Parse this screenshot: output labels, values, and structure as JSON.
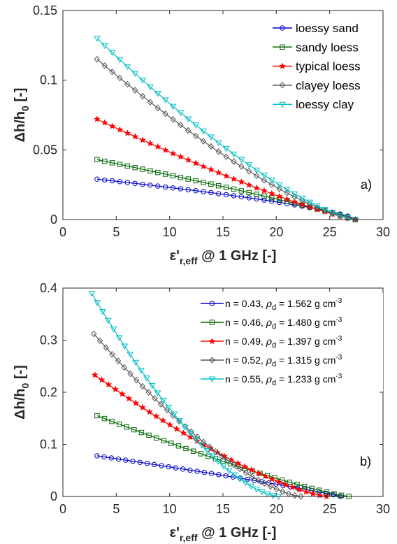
{
  "chart_data": [
    {
      "type": "line",
      "panel_label": "a)",
      "xlabel": {
        "main": "ε'",
        "sub": "r,eff",
        "rest": " @ 1 GHz [-]"
      },
      "ylabel": {
        "main": "Δh/h",
        "sub": "0",
        "rest": " [-]"
      },
      "xlim": [
        0,
        30
      ],
      "ylim": [
        0,
        0.15
      ],
      "xticks": [
        0,
        5,
        10,
        15,
        20,
        25,
        30
      ],
      "yticks": [
        0,
        0.05,
        0.1,
        0.15
      ],
      "ytick_labels": [
        "0",
        "0.05",
        "0.1",
        "0.15"
      ],
      "grid": false,
      "legend_placement": "top-right",
      "series": [
        {
          "name": "loessy sand",
          "color": "#0000cc",
          "marker": "circle",
          "x0": 3.2,
          "x1": 27.4,
          "y0": 0.029,
          "k": 0.7
        },
        {
          "name": "sandy loess",
          "color": "#006600",
          "marker": "square",
          "x0": 3.2,
          "x1": 27.4,
          "y0": 0.043,
          "k": 0.9
        },
        {
          "name": "typical loess",
          "color": "#ff0000",
          "marker": "star",
          "x0": 3.2,
          "x1": 27.4,
          "y0": 0.072,
          "k": 1.2
        },
        {
          "name": "clayey loess",
          "color": "#555555",
          "marker": "diamond",
          "x0": 3.2,
          "x1": 27.4,
          "y0": 0.115,
          "k": 1.35
        },
        {
          "name": "loessy clay",
          "color": "#00bfc4",
          "marker": "triangle-down",
          "x0": 3.2,
          "x1": 27.4,
          "y0": 0.13,
          "k": 1.35
        }
      ]
    },
    {
      "type": "line",
      "panel_label": "b)",
      "xlabel": {
        "main": "ε'",
        "sub": "r,eff",
        "rest": " @ 1 GHz [-]"
      },
      "ylabel": {
        "main": "Δh/h",
        "sub": "0",
        "rest": " [-]"
      },
      "xlim": [
        0,
        30
      ],
      "ylim": [
        0,
        0.4
      ],
      "xticks": [
        0,
        5,
        10,
        15,
        20,
        25,
        30
      ],
      "yticks": [
        0,
        0.1,
        0.2,
        0.3,
        0.4
      ],
      "ytick_labels": [
        "0",
        "0.1",
        "0.2",
        "0.3",
        "0.4"
      ],
      "grid": false,
      "legend_placement": "top-right",
      "series": [
        {
          "name": "n = 0.43, ρd = 1.562 g cm-3",
          "n_label": "n = 0.43, ",
          "rho": "ρ",
          "rho_sub": "d",
          "rho_val": " = 1.562 g cm",
          "exp": "-3",
          "color": "#0000cc",
          "marker": "circle",
          "x0": 3.2,
          "x1": 26.0,
          "y0": 0.078,
          "k": 0.9
        },
        {
          "name": "n = 0.46, ρd = 1.480 g cm-3",
          "n_label": "n = 0.46, ",
          "rho": "ρ",
          "rho_sub": "d",
          "rho_val": " = 1.480 g cm",
          "exp": "-3",
          "color": "#006600",
          "marker": "square",
          "x0": 3.2,
          "x1": 26.8,
          "y0": 0.155,
          "k": 1.2
        },
        {
          "name": "n = 0.49, ρd = 1.397 g cm-3",
          "n_label": "n = 0.49, ",
          "rho": "ρ",
          "rho_sub": "d",
          "rho_val": " = 1.397 g cm",
          "exp": "-3",
          "color": "#ff0000",
          "marker": "star",
          "x0": 3.0,
          "x1": 24.7,
          "y0": 0.233,
          "k": 1.35
        },
        {
          "name": "n = 0.52, ρd = 1.315 g cm-3",
          "n_label": "n = 0.52, ",
          "rho": "ρ",
          "rho_sub": "d",
          "rho_val": " = 1.315 g cm",
          "exp": "-3",
          "color": "#555555",
          "marker": "diamond",
          "x0": 2.9,
          "x1": 22.3,
          "y0": 0.312,
          "k": 1.45
        },
        {
          "name": "n = 0.55, ρd = 1.233 g cm-3",
          "n_label": "n = 0.55, ",
          "rho": "ρ",
          "rho_sub": "d",
          "rho_val": " = 1.233 g cm",
          "exp": "-3",
          "color": "#00bfc4",
          "marker": "triangle-down",
          "x0": 2.7,
          "x1": 20.2,
          "y0": 0.39,
          "k": 1.55
        }
      ]
    }
  ]
}
